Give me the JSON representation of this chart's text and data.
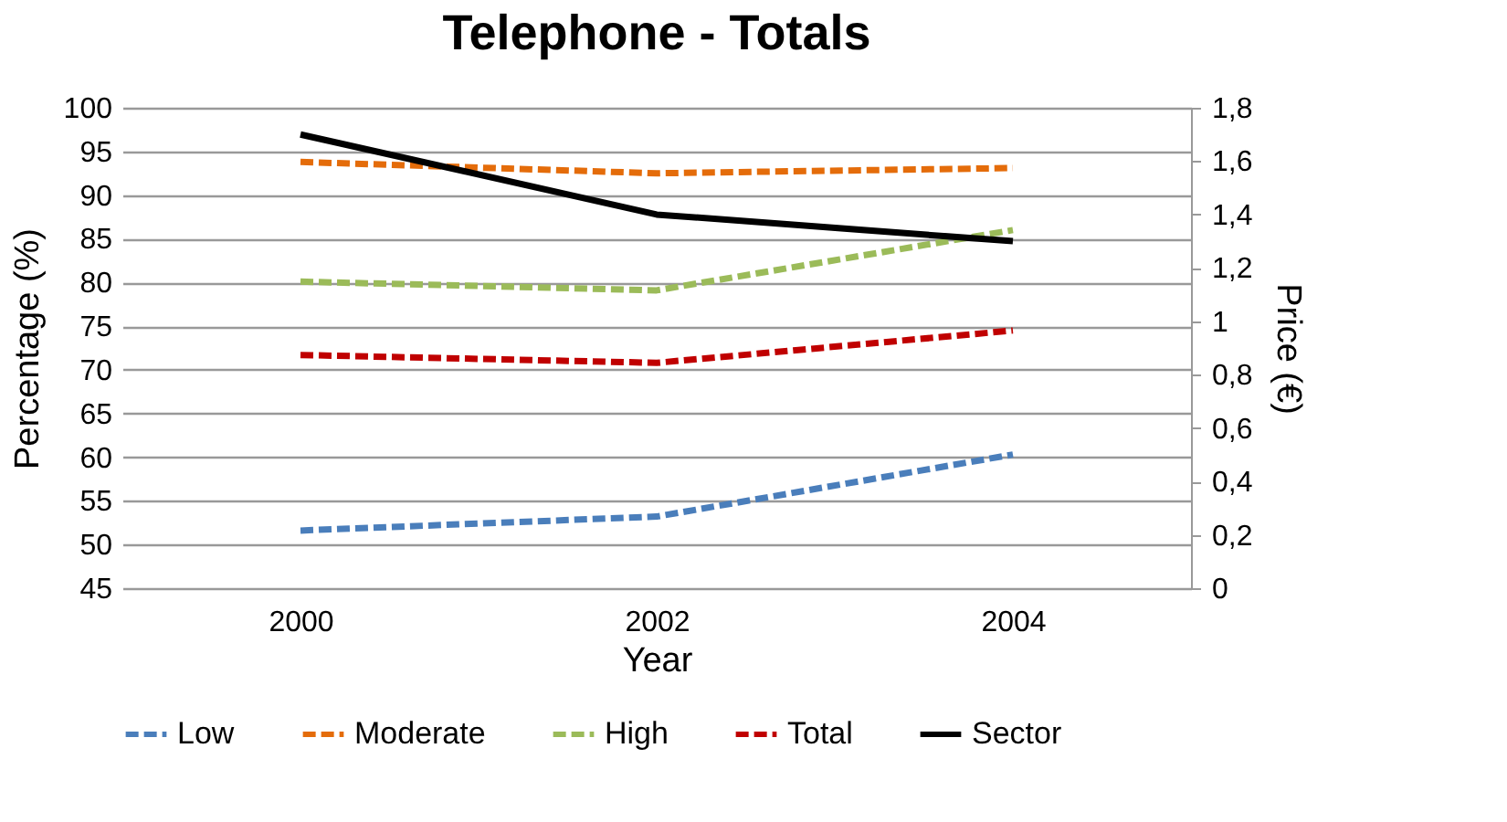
{
  "chart_data": {
    "type": "line",
    "title": "Telephone - Totals",
    "xlabel": "Year",
    "ylabel": "Percentage (%)",
    "y2label": "Price (€)",
    "categories": [
      "2000",
      "2002",
      "2004"
    ],
    "series": [
      {
        "name": "Low",
        "color": "#4a7ebb",
        "line_style": "dashed",
        "values": [
          51.6,
          53.2,
          60.3
        ]
      },
      {
        "name": "Moderate",
        "color": "#e46c0a",
        "line_style": "dashed",
        "values": [
          93.8,
          92.5,
          93.1
        ]
      },
      {
        "name": "High",
        "color": "#9bbb59",
        "line_style": "dashed",
        "values": [
          80.1,
          79.1,
          86
        ]
      },
      {
        "name": "Total",
        "color": "#c00000",
        "line_style": "dashed",
        "values": [
          71.7,
          70.8,
          74.5
        ]
      },
      {
        "name": "Sector",
        "color": "#000000",
        "line_style": "solid",
        "axis": "y2",
        "values": [
          1.7,
          1.4,
          1.3
        ]
      }
    ],
    "ylim": [
      45,
      100
    ],
    "yticks": [
      45,
      50,
      55,
      60,
      65,
      70,
      75,
      80,
      85,
      90,
      95,
      100
    ],
    "y2lim": [
      0,
      1.8
    ],
    "y2ticks": [
      0,
      {
        "value": 0.2,
        "label": "0,2"
      },
      {
        "value": 0.4,
        "label": "0,4"
      },
      {
        "value": 0.6,
        "label": "0,6"
      },
      {
        "value": 0.8,
        "label": "0,8"
      },
      1,
      {
        "value": 1.2,
        "label": "1,2"
      },
      {
        "value": 1.4,
        "label": "1,4"
      },
      {
        "value": 1.6,
        "label": "1,6"
      },
      {
        "value": 1.8,
        "label": "1,8"
      }
    ],
    "grid": "y",
    "legend": "bottom",
    "marker": "none"
  }
}
